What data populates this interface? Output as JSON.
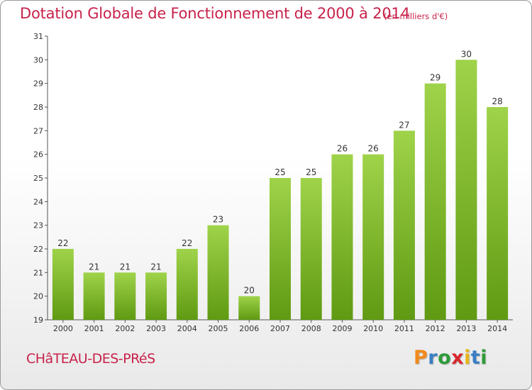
{
  "title": "Dotation Globale de Fonctionnement de 2000 à 2014",
  "unit": "(en milliers d'€)",
  "commune": "CHâTEAU-DES-PRéS",
  "logo": {
    "letters": [
      "P",
      "r",
      "o",
      "x",
      "i",
      "t",
      "i"
    ]
  },
  "colors": {
    "title": "#c8224a",
    "bar_light": "#9fd34a",
    "bar_dark": "#5f9a12",
    "logo": [
      "#f18a1c",
      "#3a7fc4",
      "#2f9b3a",
      "#d9262e",
      "#e8b51a",
      "#3a7fc4",
      "#2f9b3a"
    ]
  },
  "chart_data": {
    "type": "bar",
    "title": "Dotation Globale de Fonctionnement de 2000 à 2014",
    "categories": [
      "2000",
      "2001",
      "2002",
      "2003",
      "2004",
      "2005",
      "2006",
      "2007",
      "2008",
      "2009",
      "2010",
      "2011",
      "2012",
      "2013",
      "2014"
    ],
    "values": [
      22,
      21,
      21,
      21,
      22,
      23,
      20,
      25,
      25,
      26,
      26,
      27,
      29,
      30,
      28
    ],
    "ylim": [
      19,
      31
    ],
    "yticks": [
      "19",
      "20",
      "21",
      "22",
      "23",
      "24",
      "25",
      "26",
      "27",
      "28",
      "29",
      "30",
      "31"
    ],
    "grid": false,
    "legend": "none"
  }
}
